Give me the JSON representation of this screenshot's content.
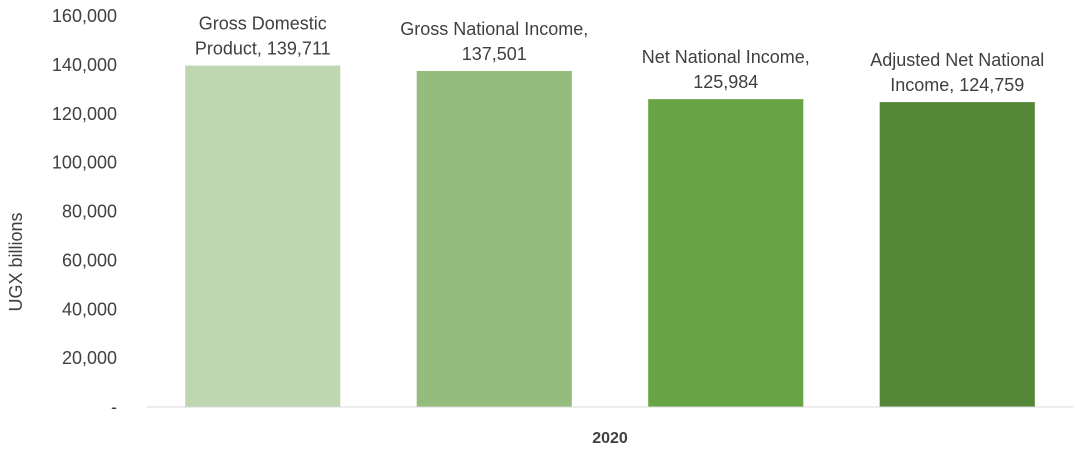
{
  "chart_data": {
    "type": "bar",
    "categories": [
      "2020"
    ],
    "series": [
      {
        "label_lines": [
          "Gross Domestic",
          "Product,  139,711"
        ],
        "values": [
          139711
        ],
        "color": "#bfd7b1"
      },
      {
        "label_lines": [
          "Gross National Income,",
          "137,501"
        ],
        "values": [
          137501
        ],
        "color": "#93bc7d"
      },
      {
        "label_lines": [
          "Net National Income,",
          "125,984"
        ],
        "values": [
          125984
        ],
        "color": "#69a444"
      },
      {
        "label_lines": [
          "Adjusted Net National",
          "Income,  124,759"
        ],
        "values": [
          124759
        ],
        "color": "#538637"
      }
    ],
    "ylabel": "UGX billions",
    "xlabel": "",
    "ylim": [
      0,
      160000
    ],
    "yticks": [
      0,
      20000,
      40000,
      60000,
      80000,
      100000,
      120000,
      140000,
      160000
    ],
    "ytick_labels": [
      "-",
      "20,000",
      "40,000",
      "60,000",
      "80,000",
      "100,000",
      "120,000",
      "140,000",
      "160,000"
    ],
    "grid": false,
    "legend": "none"
  }
}
